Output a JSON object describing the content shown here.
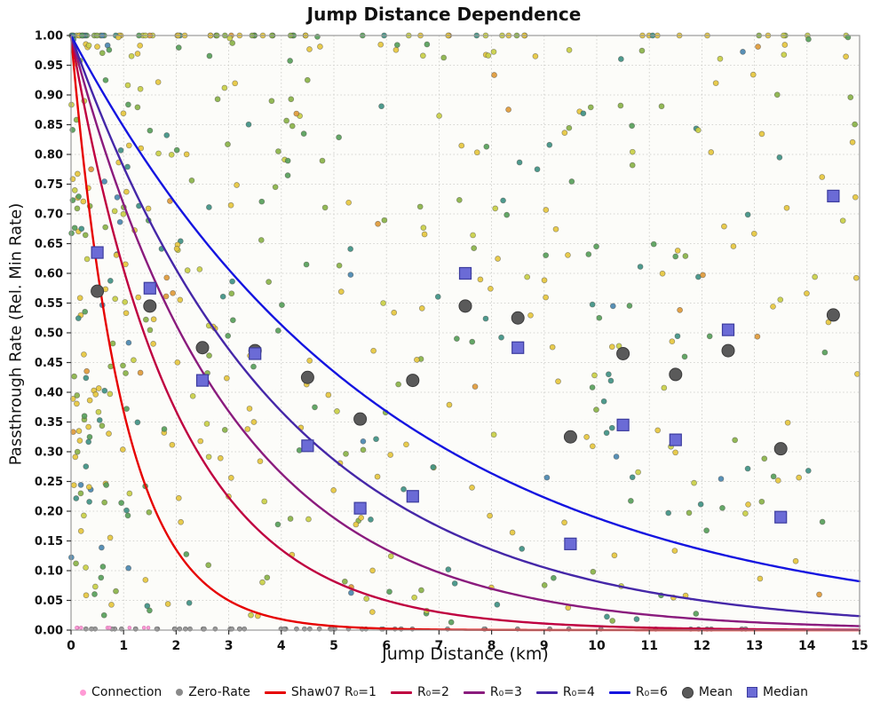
{
  "chart_data": {
    "type": "scatter",
    "title": "Jump Distance Dependence",
    "xlabel": "Jump Distance (km)",
    "ylabel": "Passthrough Rate (Rel. Min Rate)",
    "xlim": [
      0,
      15
    ],
    "ylim": [
      0.0,
      1.0
    ],
    "x_tick_step": 1,
    "y_tick_step": 0.05,
    "y_tick_decimals": 2,
    "grid": "dotted",
    "plot_bg": "#fcfcf9",
    "border_color": "#9a9a9a",
    "curves": [
      {
        "name": "Shaw07 R₀=1",
        "R0": 1,
        "color": "#e60000"
      },
      {
        "name": "R₀=2",
        "R0": 2,
        "color": "#bf0040"
      },
      {
        "name": "R₀=3",
        "R0": 3,
        "color": "#8a1b7d"
      },
      {
        "name": "R₀=4",
        "R0": 4,
        "color": "#4527a8"
      },
      {
        "name": "R₀=6",
        "R0": 6,
        "color": "#1414e0"
      }
    ],
    "curve_formula": "y = exp(-x / R0)",
    "mean": {
      "name": "Mean",
      "color": "#5a5a5a",
      "points": [
        [
          0.5,
          0.57
        ],
        [
          1.5,
          0.545
        ],
        [
          2.5,
          0.475
        ],
        [
          3.5,
          0.47
        ],
        [
          4.5,
          0.425
        ],
        [
          5.5,
          0.355
        ],
        [
          6.5,
          0.42
        ],
        [
          7.5,
          0.545
        ],
        [
          8.5,
          0.525
        ],
        [
          9.5,
          0.325
        ],
        [
          10.5,
          0.465
        ],
        [
          11.5,
          0.43
        ],
        [
          12.5,
          0.47
        ],
        [
          13.5,
          0.305
        ],
        [
          14.5,
          0.53
        ]
      ]
    },
    "median": {
      "name": "Median",
      "color": "#6b6bd6",
      "points": [
        [
          0.5,
          0.635
        ],
        [
          1.5,
          0.575
        ],
        [
          2.5,
          0.42
        ],
        [
          3.5,
          0.465
        ],
        [
          4.5,
          0.31
        ],
        [
          5.5,
          0.205
        ],
        [
          6.5,
          0.225
        ],
        [
          7.5,
          0.6
        ],
        [
          8.5,
          0.475
        ],
        [
          9.5,
          0.145
        ],
        [
          10.5,
          0.345
        ],
        [
          11.5,
          0.32
        ],
        [
          12.5,
          0.505
        ],
        [
          13.5,
          0.19
        ],
        [
          14.5,
          0.73
        ]
      ]
    },
    "scatter_points": {
      "description": "individual jump samples, dense cluster near x=0, row along y=1.0, otherwise roughly uniform",
      "count": 560,
      "seed": 42,
      "left_cluster_fraction": 0.3,
      "left_cluster_scale_km": 0.9,
      "top_row_fraction": 0.1,
      "near_top_fraction": 0.03,
      "palette": [
        "#e6c73e",
        "#c9cf45",
        "#8ab348",
        "#57a05a",
        "#3f9184",
        "#e09a3a",
        "#4a87b0"
      ],
      "palette_weights": [
        0.3,
        0.15,
        0.16,
        0.15,
        0.15,
        0.05,
        0.04
      ],
      "point_radius": 3
    },
    "zero_rate": {
      "name": "Zero-Rate",
      "color": "#9a9a9a",
      "stroke": "#6e6e6e",
      "count": 60,
      "y": 0.002
    },
    "connection": {
      "name": "Connection",
      "color": "#ff9ad5",
      "count": 8,
      "y": 0.004
    },
    "legend": [
      {
        "label": "Connection",
        "swatch": "dot-small",
        "color": "#ff9ad5"
      },
      {
        "label": "Zero-Rate",
        "swatch": "dot",
        "color": "#8a8a8a"
      },
      {
        "label": "Shaw07 R₀=1",
        "swatch": "line",
        "color": "#e60000"
      },
      {
        "label": "R₀=2",
        "swatch": "line",
        "color": "#bf0040"
      },
      {
        "label": "R₀=3",
        "swatch": "line",
        "color": "#8a1b7d"
      },
      {
        "label": "R₀=4",
        "swatch": "line",
        "color": "#4527a8"
      },
      {
        "label": "R₀=6",
        "swatch": "line",
        "color": "#1414e0"
      },
      {
        "label": "Mean",
        "swatch": "circle-big",
        "color": "#5a5a5a"
      },
      {
        "label": "Median",
        "swatch": "square-big",
        "color": "#6b6bd6"
      }
    ]
  }
}
